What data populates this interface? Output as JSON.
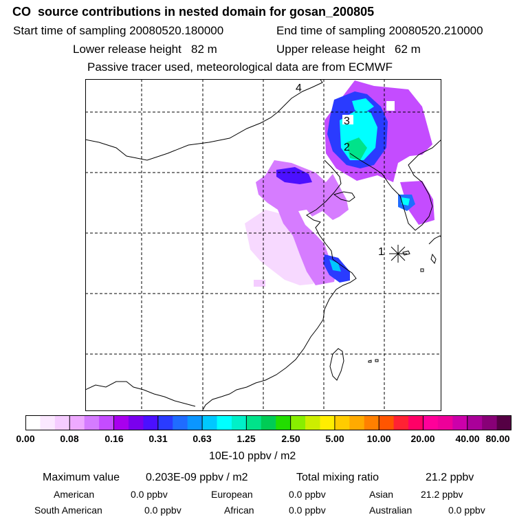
{
  "header": {
    "title": "CO  source contributions in nested domain for gosan_200805",
    "start_time": "Start time of sampling 20080520.180000",
    "end_time": "End time of sampling 20080520.210000",
    "lower_release": "Lower release height   82 m",
    "upper_release": "Upper release height   62 m",
    "info": "Passive tracer used, meteorological data are from ECMWF"
  },
  "chart_data": {
    "type": "heatmap",
    "title": "CO  source contributions in nested domain for gosan_200805",
    "colorbar_ticks": [
      "0.00",
      "0.08",
      "0.16",
      "0.31",
      "0.63",
      "1.25",
      "2.50",
      "5.00",
      "10.00",
      "20.00",
      "40.00",
      "80.00"
    ],
    "colorbar_unit": "10E-10 ppbv / m2",
    "colorbar_colors": [
      "#ffffff",
      "#fbe8ff",
      "#f5ccff",
      "#eeaaff",
      "#d57cff",
      "#c44cff",
      "#a800ee",
      "#7a00ee",
      "#4b10ff",
      "#2a3bff",
      "#1f6cff",
      "#0b96ff",
      "#00c8ff",
      "#00ffff",
      "#00f0c8",
      "#00e38a",
      "#00cc55",
      "#22dd00",
      "#88ee00",
      "#ccee00",
      "#ffee00",
      "#ffcc00",
      "#ffaa00",
      "#ff8000",
      "#ff5500",
      "#ff2233",
      "#ff0066",
      "#ff0099",
      "#ee0099",
      "#cc00aa",
      "#aa0099",
      "#880077",
      "#550044"
    ],
    "markers": [
      {
        "label": "1"
      },
      {
        "label": "2"
      },
      {
        "label": "3"
      },
      {
        "label": "4"
      }
    ],
    "stats": {
      "max_label": "Maximum value",
      "max_value": "0.203E-09 ppbv / m2",
      "total_label": "Total mixing ratio",
      "total_value": "21.2 ppbv",
      "american_label": "American",
      "american_value": "0.0 ppbv",
      "european_label": "European",
      "european_value": "0.0 ppbv",
      "asian_label": "Asian",
      "asian_value": "21.2 ppbv",
      "south_american_label": "South American",
      "south_american_value": "0.0 ppbv",
      "african_label": "African",
      "african_value": "0.0 ppbv",
      "australian_label": "Australian",
      "australian_value": "0.0 ppbv"
    }
  }
}
